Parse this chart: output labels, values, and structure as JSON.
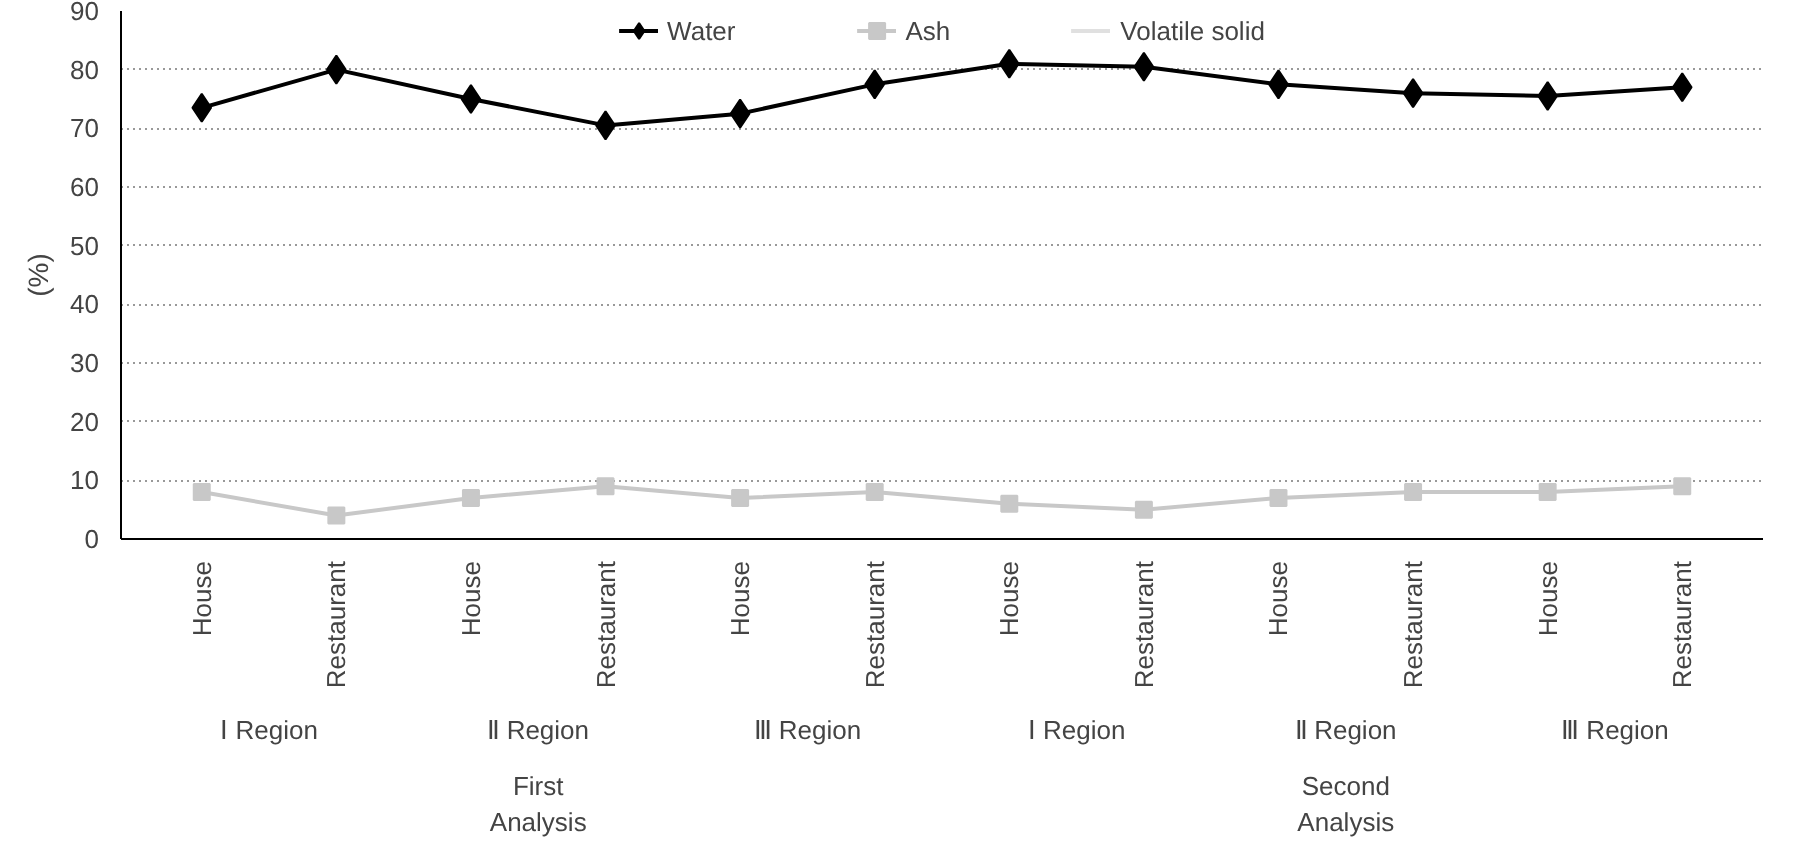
{
  "chart_data": {
    "type": "line",
    "ylabel": "(%)",
    "categories": [
      "House",
      "Restaurant",
      "House",
      "Restaurant",
      "House",
      "Restaurant",
      "House",
      "Restaurant",
      "House",
      "Restaurant",
      "House",
      "Restaurant"
    ],
    "series": [
      {
        "name": "Water",
        "color": "#000000",
        "marker": "diamond",
        "values": [
          73.5,
          80,
          75,
          70.5,
          72.5,
          77.5,
          81,
          80.5,
          77.5,
          76,
          75.5,
          77
        ]
      },
      {
        "name": "Ash",
        "color": "#c8c8c8",
        "marker": "square",
        "values": [
          8,
          4,
          7,
          9,
          7,
          8,
          6,
          5,
          7,
          8,
          8,
          9
        ]
      },
      {
        "name": "Volatile solid",
        "color": "#e0e0e0",
        "marker": "none",
        "values": [
          null,
          null,
          null,
          null,
          null,
          null,
          null,
          null,
          null,
          null,
          null,
          null
        ]
      }
    ],
    "ylim": [
      0,
      90
    ],
    "yticks": [
      0,
      10,
      20,
      30,
      40,
      50,
      60,
      70,
      80,
      90
    ],
    "grid": "y",
    "legend": "top",
    "annotations": [
      "Ⅰ Region",
      "Ⅱ Region",
      "Ⅲ Region",
      "Ⅰ Region",
      "Ⅱ Region",
      "Ⅲ Region",
      "First\nAnalysis",
      "Second\nAnalysis"
    ]
  }
}
